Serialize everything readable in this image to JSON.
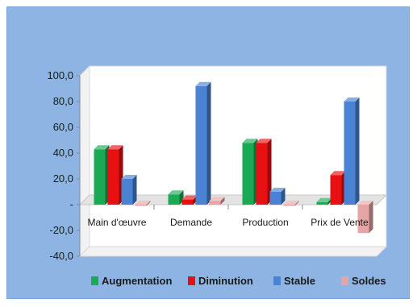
{
  "chart_data": {
    "type": "bar",
    "title": "",
    "xlabel": "",
    "ylabel": "",
    "ylim": [
      -40,
      100
    ],
    "yticks": [
      "100,0",
      "80,0",
      "60,0",
      "40,0",
      "20,0",
      "-",
      "-20,0",
      "-40,0"
    ],
    "ytick_values": [
      100,
      80,
      60,
      40,
      20,
      0,
      -20,
      -40
    ],
    "categories": [
      "Main d'œuvre",
      "Demande",
      "Production",
      "Prix de Vente"
    ],
    "series": [
      {
        "name": "Augmentation",
        "color": "#1aaa55",
        "values": [
          43,
          8,
          48,
          2
        ]
      },
      {
        "name": "Diminution",
        "color": "#e81010",
        "values": [
          43,
          4,
          48,
          23
        ]
      },
      {
        "name": "Stable",
        "color": "#4a82d4",
        "values": [
          20,
          92,
          10,
          80
        ]
      },
      {
        "name": "Soldes",
        "color": "#e6a5a5",
        "values": [
          0,
          3,
          0,
          -22
        ]
      }
    ],
    "legend_position": "bottom",
    "grid": false
  }
}
